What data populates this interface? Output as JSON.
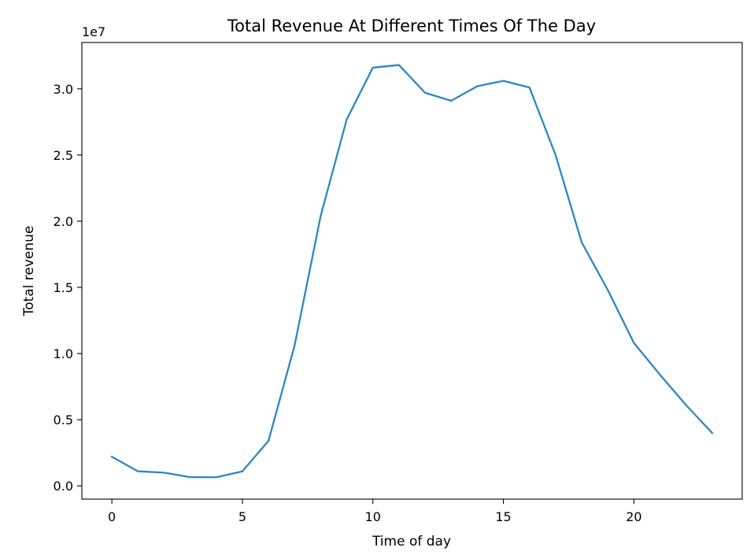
{
  "chart_data": {
    "type": "line",
    "title": "Total Revenue At Different Times Of The Day",
    "xlabel": "Time of day",
    "ylabel": "Total revenue",
    "y_offset_label": "1e7",
    "xlim": [
      -1.15,
      24.15
    ],
    "ylim": [
      -0.1,
      3.35
    ],
    "y_unit_scale": 10000000,
    "x_ticks": [
      0,
      5,
      10,
      15,
      20
    ],
    "x_tick_labels": [
      "0",
      "5",
      "10",
      "15",
      "20"
    ],
    "y_ticks": [
      0.0,
      0.5,
      1.0,
      1.5,
      2.0,
      2.5,
      3.0
    ],
    "y_tick_labels": [
      "0.0",
      "0.5",
      "1.0",
      "1.5",
      "2.0",
      "2.5",
      "3.0"
    ],
    "grid": false,
    "series": [
      {
        "color": "#2e86c1",
        "x": [
          0,
          1,
          2,
          3,
          4,
          5,
          6,
          7,
          8,
          9,
          10,
          11,
          12,
          13,
          14,
          15,
          16,
          17,
          18,
          19,
          20,
          21,
          22,
          23
        ],
        "y": [
          0.22,
          0.11,
          0.1,
          0.066,
          0.065,
          0.11,
          0.34,
          1.06,
          2.04,
          2.77,
          3.16,
          3.18,
          2.97,
          2.91,
          3.02,
          3.06,
          3.01,
          2.5,
          1.84,
          1.48,
          1.08,
          0.84,
          0.61,
          0.4
        ]
      }
    ]
  }
}
